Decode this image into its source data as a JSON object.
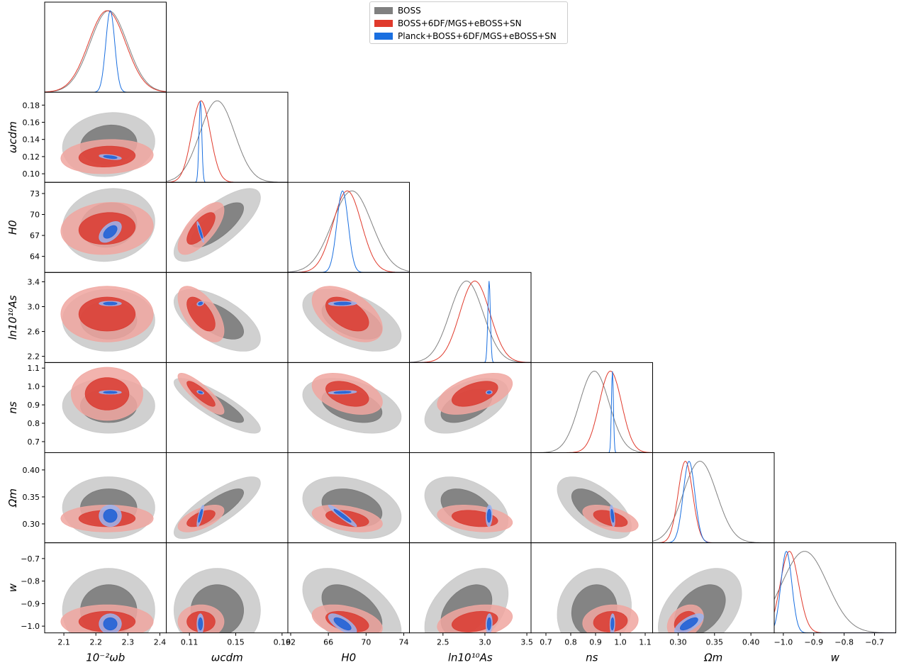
{
  "legend": {
    "items": [
      {
        "label": "BOSS",
        "color": "#808080"
      },
      {
        "label": "BOSS+6DF/MGS+eBOSS+SN",
        "color": "#e03a2c"
      },
      {
        "label": "Planck+BOSS+6DF/MGS+eBOSS+SN",
        "color": "#1a6fe0"
      }
    ]
  },
  "chart_data": {
    "type": "corner",
    "parameters": [
      {
        "name": "10^{-2}ω_b",
        "label": "10⁻²ωb",
        "range": [
          2.04,
          2.42
        ],
        "ticks": [
          2.1,
          2.2,
          2.3,
          2.4
        ],
        "tick_labels": [
          "2.1",
          "2.2",
          "2.3",
          "2.4"
        ]
      },
      {
        "name": "ω_cdm",
        "label": "ωcdm",
        "range": [
          0.09,
          0.195
        ],
        "ticks": [
          0.11,
          0.15,
          0.19
        ],
        "tick_labels": [
          "0.11",
          "0.15",
          "0.19"
        ],
        "y_ticks": [
          0.1,
          0.12,
          0.14,
          0.16,
          0.18
        ],
        "y_tick_labels": [
          "0.10",
          "0.12",
          "0.14",
          "0.16",
          "0.18"
        ]
      },
      {
        "name": "H_0",
        "label": "H0",
        "range": [
          61.7,
          74.6
        ],
        "ticks": [
          62,
          66,
          70,
          74
        ],
        "tick_labels": [
          "62",
          "66",
          "70",
          "74"
        ],
        "y_ticks": [
          64,
          67,
          70,
          73
        ],
        "y_tick_labels": [
          "64",
          "67",
          "70",
          "73"
        ]
      },
      {
        "name": "ln10^{10}A_s",
        "label": "ln10¹⁰As",
        "range": [
          2.1,
          3.55
        ],
        "ticks": [
          2.5,
          3.0,
          3.5
        ],
        "tick_labels": [
          "2.5",
          "3.0",
          "3.5"
        ],
        "y_ticks": [
          2.2,
          2.6,
          3.0,
          3.4
        ],
        "y_tick_labels": [
          "2.2",
          "2.6",
          "3.0",
          "3.4"
        ]
      },
      {
        "name": "n_s",
        "label": "ns",
        "range": [
          0.64,
          1.13
        ],
        "ticks": [
          0.7,
          0.8,
          0.9,
          1.0,
          1.1
        ],
        "tick_labels": [
          "0.7",
          "0.8",
          "0.9",
          "1.0",
          "1.1"
        ],
        "y_ticks": [
          0.7,
          0.8,
          0.9,
          1.0,
          1.1
        ],
        "y_tick_labels": [
          "0.7",
          "0.8",
          "0.9",
          "1.0",
          "1.1"
        ]
      },
      {
        "name": "Ω_m",
        "label": "Ωm",
        "range": [
          0.265,
          0.432
        ],
        "ticks": [
          0.3,
          0.35,
          0.4
        ],
        "tick_labels": [
          "0.30",
          "0.35",
          "0.40"
        ],
        "y_ticks": [
          0.3,
          0.35,
          0.4
        ],
        "y_tick_labels": [
          "0.30",
          "0.35",
          "0.40"
        ]
      },
      {
        "name": "w",
        "label": "w",
        "range": [
          -1.03,
          -0.63
        ],
        "ticks": [
          -1.0,
          -0.9,
          -0.8,
          -0.7
        ],
        "tick_labels": [
          "−1.0",
          "−0.9",
          "−0.8",
          "−0.7"
        ],
        "y_ticks": [
          -1.0,
          -0.9,
          -0.8,
          -0.7
        ],
        "y_tick_labels": [
          "−1.0",
          "−0.9",
          "−0.8",
          "−0.7"
        ]
      }
    ],
    "y_axis_labels": [
      "ωcdm",
      "H0",
      "ln10¹⁰As",
      "ns",
      "Ωm",
      "w"
    ],
    "series": [
      {
        "name": "BOSS",
        "color": "#808080",
        "fill_1sigma": "#777777",
        "fill_2sigma": "#c8c8c8",
        "mean": [
          2.24,
          0.134,
          68.5,
          2.78,
          0.895,
          0.33,
          -0.93
        ],
        "std": [
          0.058,
          0.015,
          2.1,
          0.2,
          0.06,
          0.023,
          0.075
        ],
        "corr": {
          "1-0": 0.1,
          "2-0": 0.1,
          "2-1": 0.75,
          "3-1": -0.6,
          "3-2": -0.5,
          "4-1": -0.85,
          "4-2": -0.4,
          "4-3": 0.5,
          "5-1": 0.8,
          "5-2": -0.3,
          "5-3": -0.4,
          "5-4": -0.6,
          "6-2": -0.5,
          "6-3": 0.4,
          "6-4": 0.1,
          "6-5": 0.4
        }
      },
      {
        "name": "BOSS+6DF/MGS+eBOSS+SN",
        "color": "#e03a2c",
        "fill_1sigma": "#d93a30",
        "fill_2sigma": "#f0a6a0",
        "mean": [
          2.235,
          0.12,
          68.0,
          2.88,
          0.96,
          0.31,
          -0.98
        ],
        "std": [
          0.058,
          0.008,
          1.5,
          0.18,
          0.045,
          0.01,
          0.03
        ],
        "corr": {
          "1-0": 0.1,
          "2-0": 0.1,
          "2-1": 0.7,
          "3-1": -0.6,
          "3-2": -0.5,
          "4-1": -0.85,
          "4-2": -0.4,
          "4-3": 0.5,
          "5-1": 0.6,
          "5-2": -0.4,
          "5-3": -0.3,
          "5-4": -0.5,
          "6-2": -0.4,
          "6-3": 0.3,
          "6-4": 0.1,
          "6-5": 0.3
        }
      },
      {
        "name": "Planck+BOSS+6DF/MGS+eBOSS+SN",
        "color": "#1a6fe0",
        "fill_1sigma": "#1a5fd6",
        "fill_2sigma": "#9bb4ee",
        "mean": [
          2.245,
          0.1195,
          67.5,
          3.05,
          0.968,
          0.315,
          -0.99
        ],
        "std": [
          0.014,
          0.0012,
          0.6,
          0.015,
          0.004,
          0.008,
          0.018
        ],
        "corr": {
          "1-0": -0.5,
          "2-0": 0.5,
          "2-1": -0.9,
          "3-1": 0.3,
          "3-2": 0.1,
          "4-1": -0.5,
          "4-2": 0.3,
          "4-3": 0.1,
          "5-1": 0.8,
          "5-2": -0.95,
          "5-3": 0.1,
          "5-4": -0.5,
          "6-2": -0.7,
          "6-3": 0.1,
          "6-4": 0.1,
          "6-5": 0.7
        }
      }
    ]
  }
}
